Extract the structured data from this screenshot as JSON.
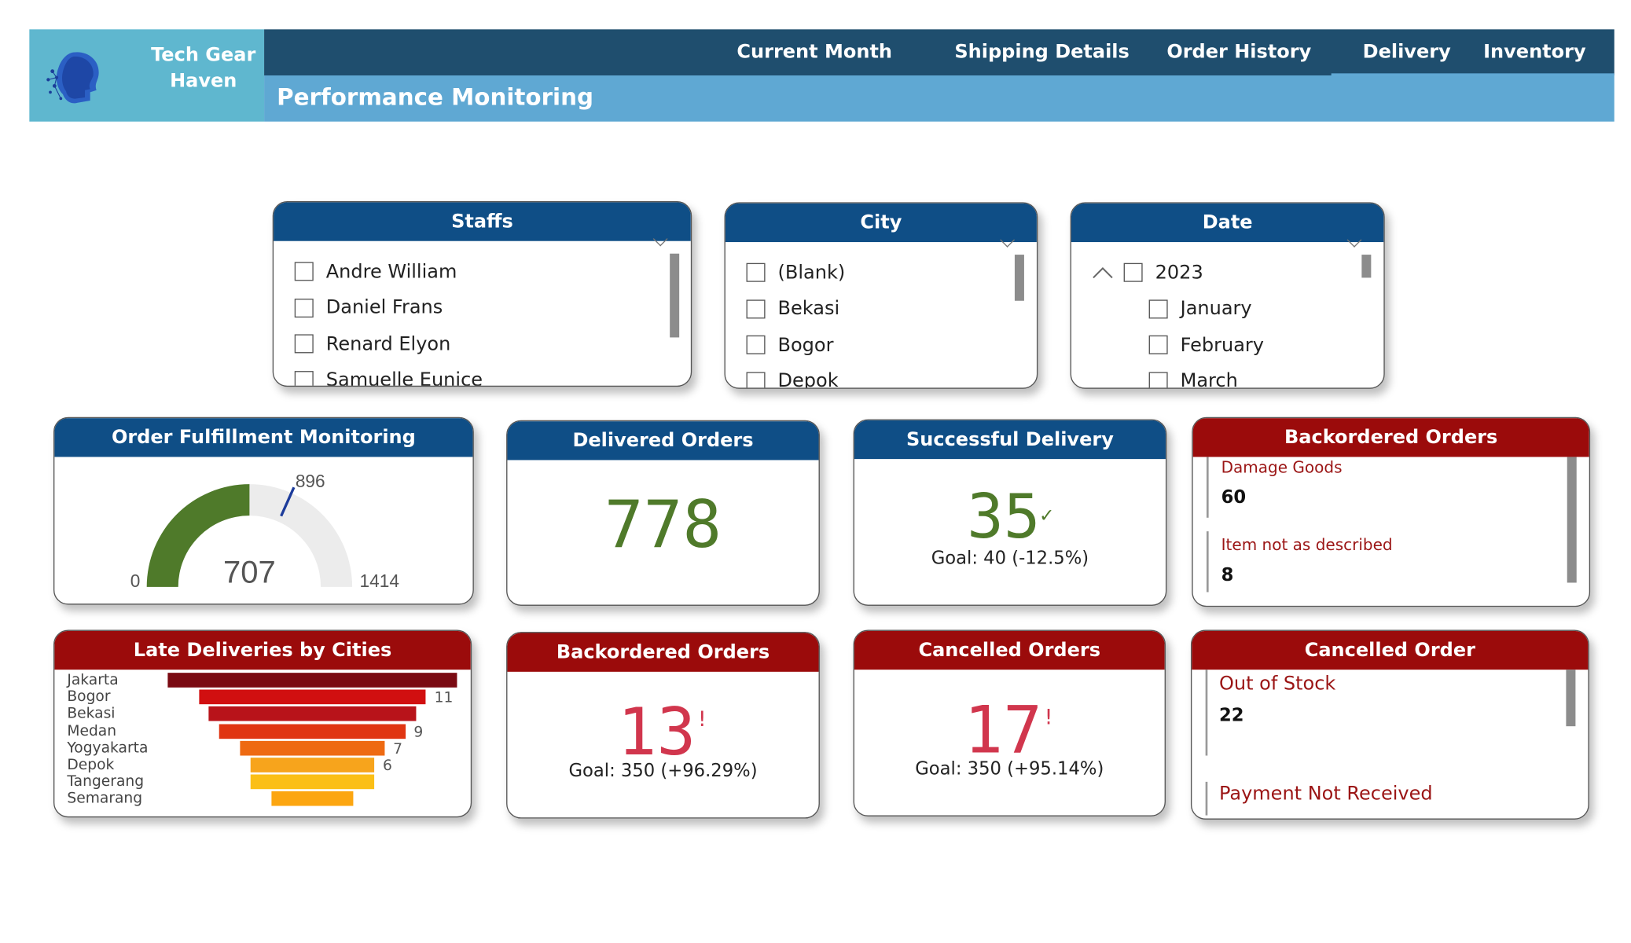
{
  "brand": {
    "name_line1": "Tech Gear",
    "name_line2": "Haven"
  },
  "nav": {
    "items": [
      {
        "label": "Current Month Orders"
      },
      {
        "label": "Shipping Details"
      },
      {
        "label": "Order History"
      },
      {
        "label": "Delivery"
      },
      {
        "label": "Inventory"
      }
    ],
    "active": "Order History"
  },
  "page_title": "Performance Monitoring",
  "slicers": {
    "staffs": {
      "title": "Staffs",
      "items": [
        "Andre William",
        "Daniel Frans",
        "Renard Elyon",
        "Samuelle Eunice"
      ]
    },
    "city": {
      "title": "City",
      "items": [
        "(Blank)",
        "Bekasi",
        "Bogor",
        "Depok"
      ]
    },
    "date": {
      "title": "Date",
      "year": "2023",
      "months": [
        "January",
        "February",
        "March"
      ]
    }
  },
  "fulfillment": {
    "title": "Order Fulfillment Monitoring",
    "value": 707,
    "min": 0,
    "max": 1414,
    "target": 896,
    "value_label": "707",
    "min_label": "0",
    "max_label": "1414",
    "target_label": "896",
    "fill_color": "#4f7a2a"
  },
  "delivered": {
    "title": "Delivered Orders",
    "value": "778",
    "color": "#4f7a2a"
  },
  "successful": {
    "title": "Successful Delivery",
    "value": "35",
    "status_icon": "check",
    "goal": "Goal: 40 (-12.5%)",
    "color": "#4f7a2a"
  },
  "backordered_detail": {
    "title": "Backordered Orders",
    "items": [
      {
        "label": "Damage Goods",
        "value": "60"
      },
      {
        "label": "Item not as described",
        "value": "8"
      }
    ]
  },
  "late_deliveries": {
    "title": "Late Deliveries by Cities",
    "chart_data": {
      "type": "bar",
      "title": "Late Deliveries by Cities",
      "categories": [
        "Jakarta",
        "Bogor",
        "Bekasi",
        "Medan",
        "Yogyakarta",
        "Depok",
        "Tangerang",
        "Semarang"
      ],
      "values": [
        14,
        11,
        10,
        9,
        7,
        6,
        6,
        4
      ],
      "data_labels": [
        "",
        "11",
        "",
        "9",
        "7",
        "6",
        "",
        ""
      ],
      "colors": [
        "#7a0a12",
        "#d10f10",
        "#b8131a",
        "#e03512",
        "#ee6a12",
        "#f7a41c",
        "#fbbf16",
        "#fca611"
      ]
    }
  },
  "backordered": {
    "title": "Backordered Orders",
    "value": "13",
    "status_icon": "!",
    "goal": "Goal: 350 (+96.29%)",
    "color": "#d1364d"
  },
  "cancelled": {
    "title": "Cancelled Orders",
    "value": "17",
    "status_icon": "!",
    "goal": "Goal: 350 (+95.14%)",
    "color": "#d1364d"
  },
  "cancelled_detail": {
    "title": "Cancelled Order",
    "items": [
      {
        "label": "Out of Stock",
        "value": "22"
      },
      {
        "label": "Payment Not Received",
        "value": ""
      }
    ]
  }
}
